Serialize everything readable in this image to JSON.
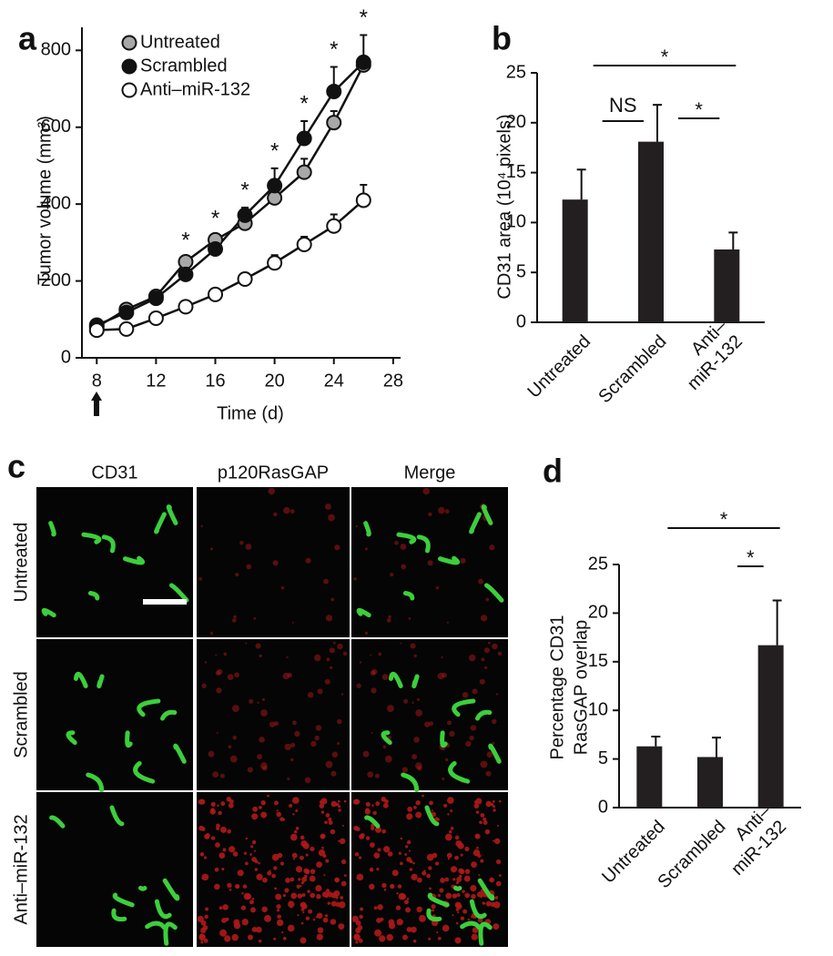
{
  "chart_data": [
    {
      "type": "line",
      "panel": "a",
      "xlabel": "Time (d)",
      "ylabel": "Tumor volume (mm³)",
      "x": [
        8,
        10,
        12,
        14,
        16,
        18,
        20,
        22,
        24,
        26
      ],
      "series": [
        {
          "name": "Untreated",
          "color": "#a8a8a8",
          "values": [
            80,
            126,
            160,
            250,
            307,
            350,
            416,
            483,
            612,
            762
          ],
          "errors": [
            5,
            10,
            10,
            10,
            10,
            15,
            20,
            35,
            30,
            20
          ]
        },
        {
          "name": "Scrambled",
          "color": "#111111",
          "values": [
            85,
            118,
            155,
            217,
            283,
            371,
            448,
            571,
            693,
            769
          ],
          "errors": [
            5,
            10,
            10,
            15,
            15,
            20,
            45,
            45,
            64,
            71
          ]
        },
        {
          "name": "Anti–miR-132",
          "color": "#ffffff",
          "values": [
            72,
            75,
            103,
            133,
            165,
            205,
            247,
            295,
            343,
            410
          ],
          "errors": [
            5,
            5,
            5,
            5,
            5,
            5,
            20,
            20,
            30,
            40
          ]
        }
      ],
      "xlim": [
        7,
        28.5
      ],
      "ylim": [
        0,
        860
      ],
      "xticks": [
        8,
        12,
        16,
        20,
        24,
        28
      ],
      "yticks": [
        0,
        200,
        400,
        600,
        800
      ],
      "annotations": [
        {
          "x": 14,
          "label": "*"
        },
        {
          "x": 16,
          "label": "*"
        },
        {
          "x": 18,
          "label": "*"
        },
        {
          "x": 20,
          "label": "*"
        },
        {
          "x": 22,
          "label": "*"
        },
        {
          "x": 24,
          "label": "*"
        },
        {
          "x": 26,
          "label": "*"
        }
      ]
    },
    {
      "type": "bar",
      "panel": "b",
      "ylabel": [
        "CD31 area (10⁴ pixels)"
      ],
      "categories": [
        [
          "Untreated"
        ],
        [
          "Scrambled"
        ],
        [
          "Anti–",
          "miR-132"
        ]
      ],
      "values": [
        12.3,
        18.1,
        7.3
      ],
      "errors": [
        3.0,
        3.7,
        1.7
      ],
      "color": "#231f20",
      "ylim": [
        0,
        25
      ],
      "yticks": [
        0,
        5,
        10,
        15,
        20,
        25
      ],
      "comparisons": [
        {
          "from": 0,
          "to": 2,
          "label": "*"
        },
        {
          "from": 0,
          "to": 1,
          "label": "NS"
        },
        {
          "from": 1,
          "to": 2,
          "label": "*"
        }
      ]
    },
    {
      "type": "bar",
      "panel": "d",
      "ylabel": [
        "Percentage CD31",
        "RasGAP overlap"
      ],
      "categories": [
        [
          "Untreated"
        ],
        [
          "Scrambled"
        ],
        [
          "Anti–",
          "miR-132"
        ]
      ],
      "values": [
        6.3,
        5.2,
        16.7
      ],
      "errors": [
        1.0,
        2.0,
        4.6
      ],
      "color": "#231f20",
      "ylim": [
        0,
        25
      ],
      "yticks": [
        0,
        5,
        10,
        15,
        20,
        25
      ],
      "comparisons": [
        {
          "from": 0,
          "to": 2,
          "label": "*"
        },
        {
          "from": 1,
          "to": 2,
          "label": "*"
        }
      ]
    }
  ],
  "panel_c": {
    "panel": "c",
    "columns": [
      "CD31",
      "p120RasGAP",
      "Merge"
    ],
    "rows": [
      "Untreated",
      "Scrambled",
      "Anti–miR-132"
    ]
  }
}
